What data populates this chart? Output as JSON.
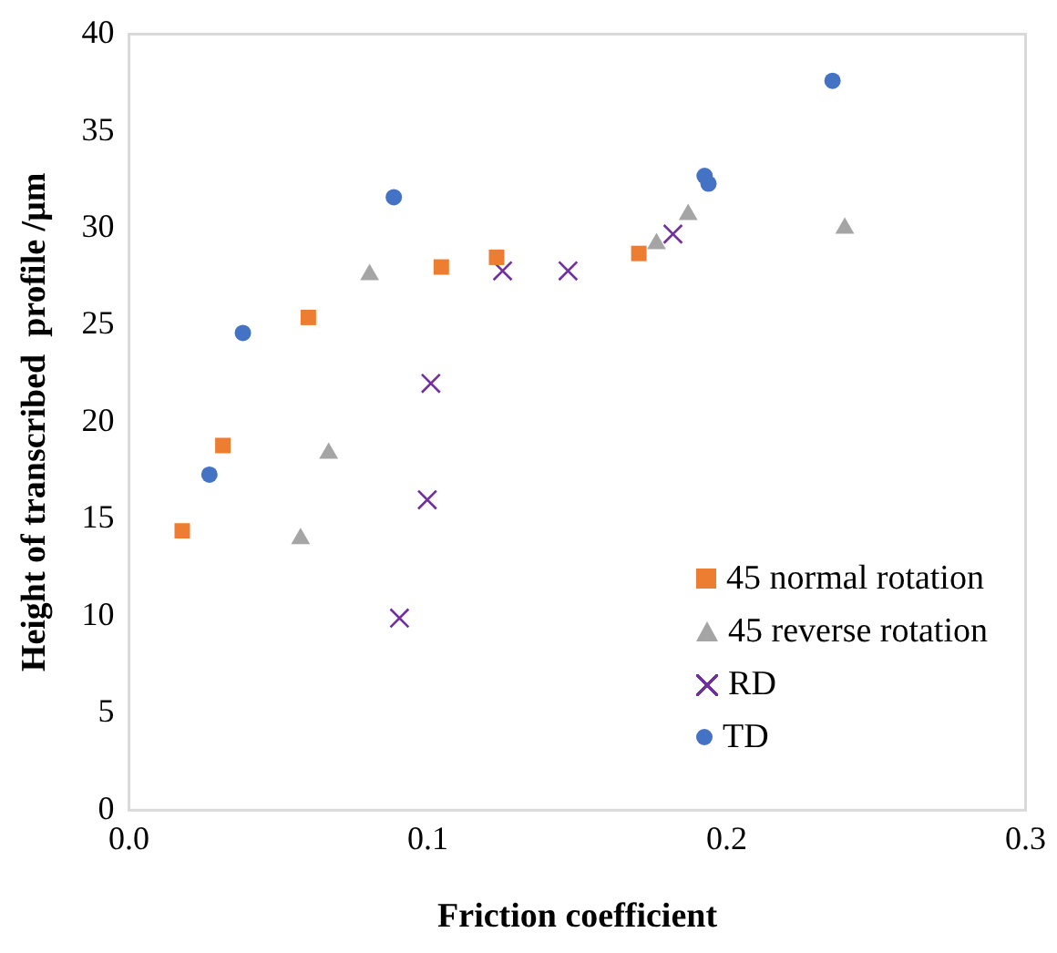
{
  "chart_data": {
    "type": "scatter",
    "xlabel": "Friction coefficient",
    "ylabel": "Height of transcribed  profile /μm",
    "xlim": [
      0,
      0.3
    ],
    "xticks": [
      {
        "value": 0,
        "label": "0.0"
      },
      0.1,
      0.2,
      0.3
    ],
    "ylim": [
      0,
      40
    ],
    "yticks": [
      0,
      5,
      10,
      15,
      20,
      25,
      30,
      35,
      40
    ],
    "grid": false,
    "legend": "bottom right",
    "series": [
      {
        "name": "45 normal rotation",
        "color": "#ed7d31",
        "marker": "square",
        "x": [
          0.0178,
          0.0314,
          0.06,
          0.1045,
          0.123,
          0.1706
        ],
        "values": [
          14.4,
          18.8,
          25.4,
          28.0,
          28.5,
          28.7
        ]
      },
      {
        "name": "45 reverse rotation",
        "color": "#a5a5a5",
        "marker": "triangle",
        "x": [
          0.0574,
          0.0668,
          0.0805,
          0.1765,
          0.1871,
          0.2395
        ],
        "values": [
          14.0,
          18.4,
          27.6,
          29.2,
          30.7,
          30.0
        ]
      },
      {
        "name": "RD",
        "color": "#7030a0",
        "marker": "cross",
        "x": [
          0.0905,
          0.0998,
          0.101,
          0.125,
          0.1469,
          0.182
        ],
        "values": [
          9.9,
          16.0,
          22.0,
          27.8,
          27.8,
          29.7
        ]
      },
      {
        "name": "TD",
        "color": "#4472c4",
        "marker": "circle",
        "x": [
          0.0269,
          0.0381,
          0.0886,
          0.1926,
          0.1939,
          0.2354
        ],
        "values": [
          17.3,
          24.6,
          31.6,
          32.7,
          32.3,
          37.6
        ]
      }
    ]
  }
}
